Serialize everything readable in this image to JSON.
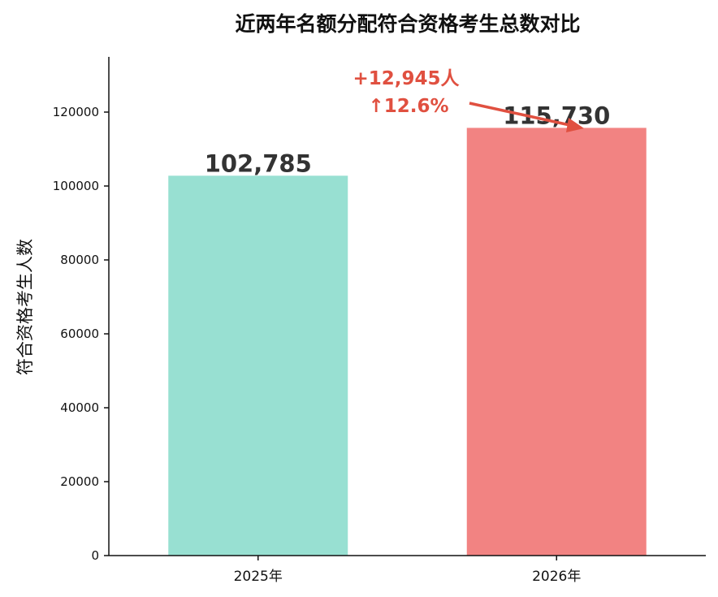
{
  "chart_data": {
    "type": "bar",
    "title": "近两年名额分配符合资格考生总数对比",
    "xlabel": "",
    "ylabel": "符合资格考生人数",
    "categories": [
      "2025年",
      "2026年"
    ],
    "values": [
      102785,
      115730
    ],
    "value_labels": [
      "102,785",
      "115,730"
    ],
    "ylim": [
      0,
      135000
    ],
    "yticks": [
      0,
      20000,
      40000,
      60000,
      80000,
      100000,
      120000
    ],
    "grid": false,
    "colors": [
      "#98e0d2",
      "#f28382"
    ],
    "annotation": {
      "lines": [
        "+12,945人",
        "↑12.6%"
      ],
      "color": "#e05040"
    }
  }
}
